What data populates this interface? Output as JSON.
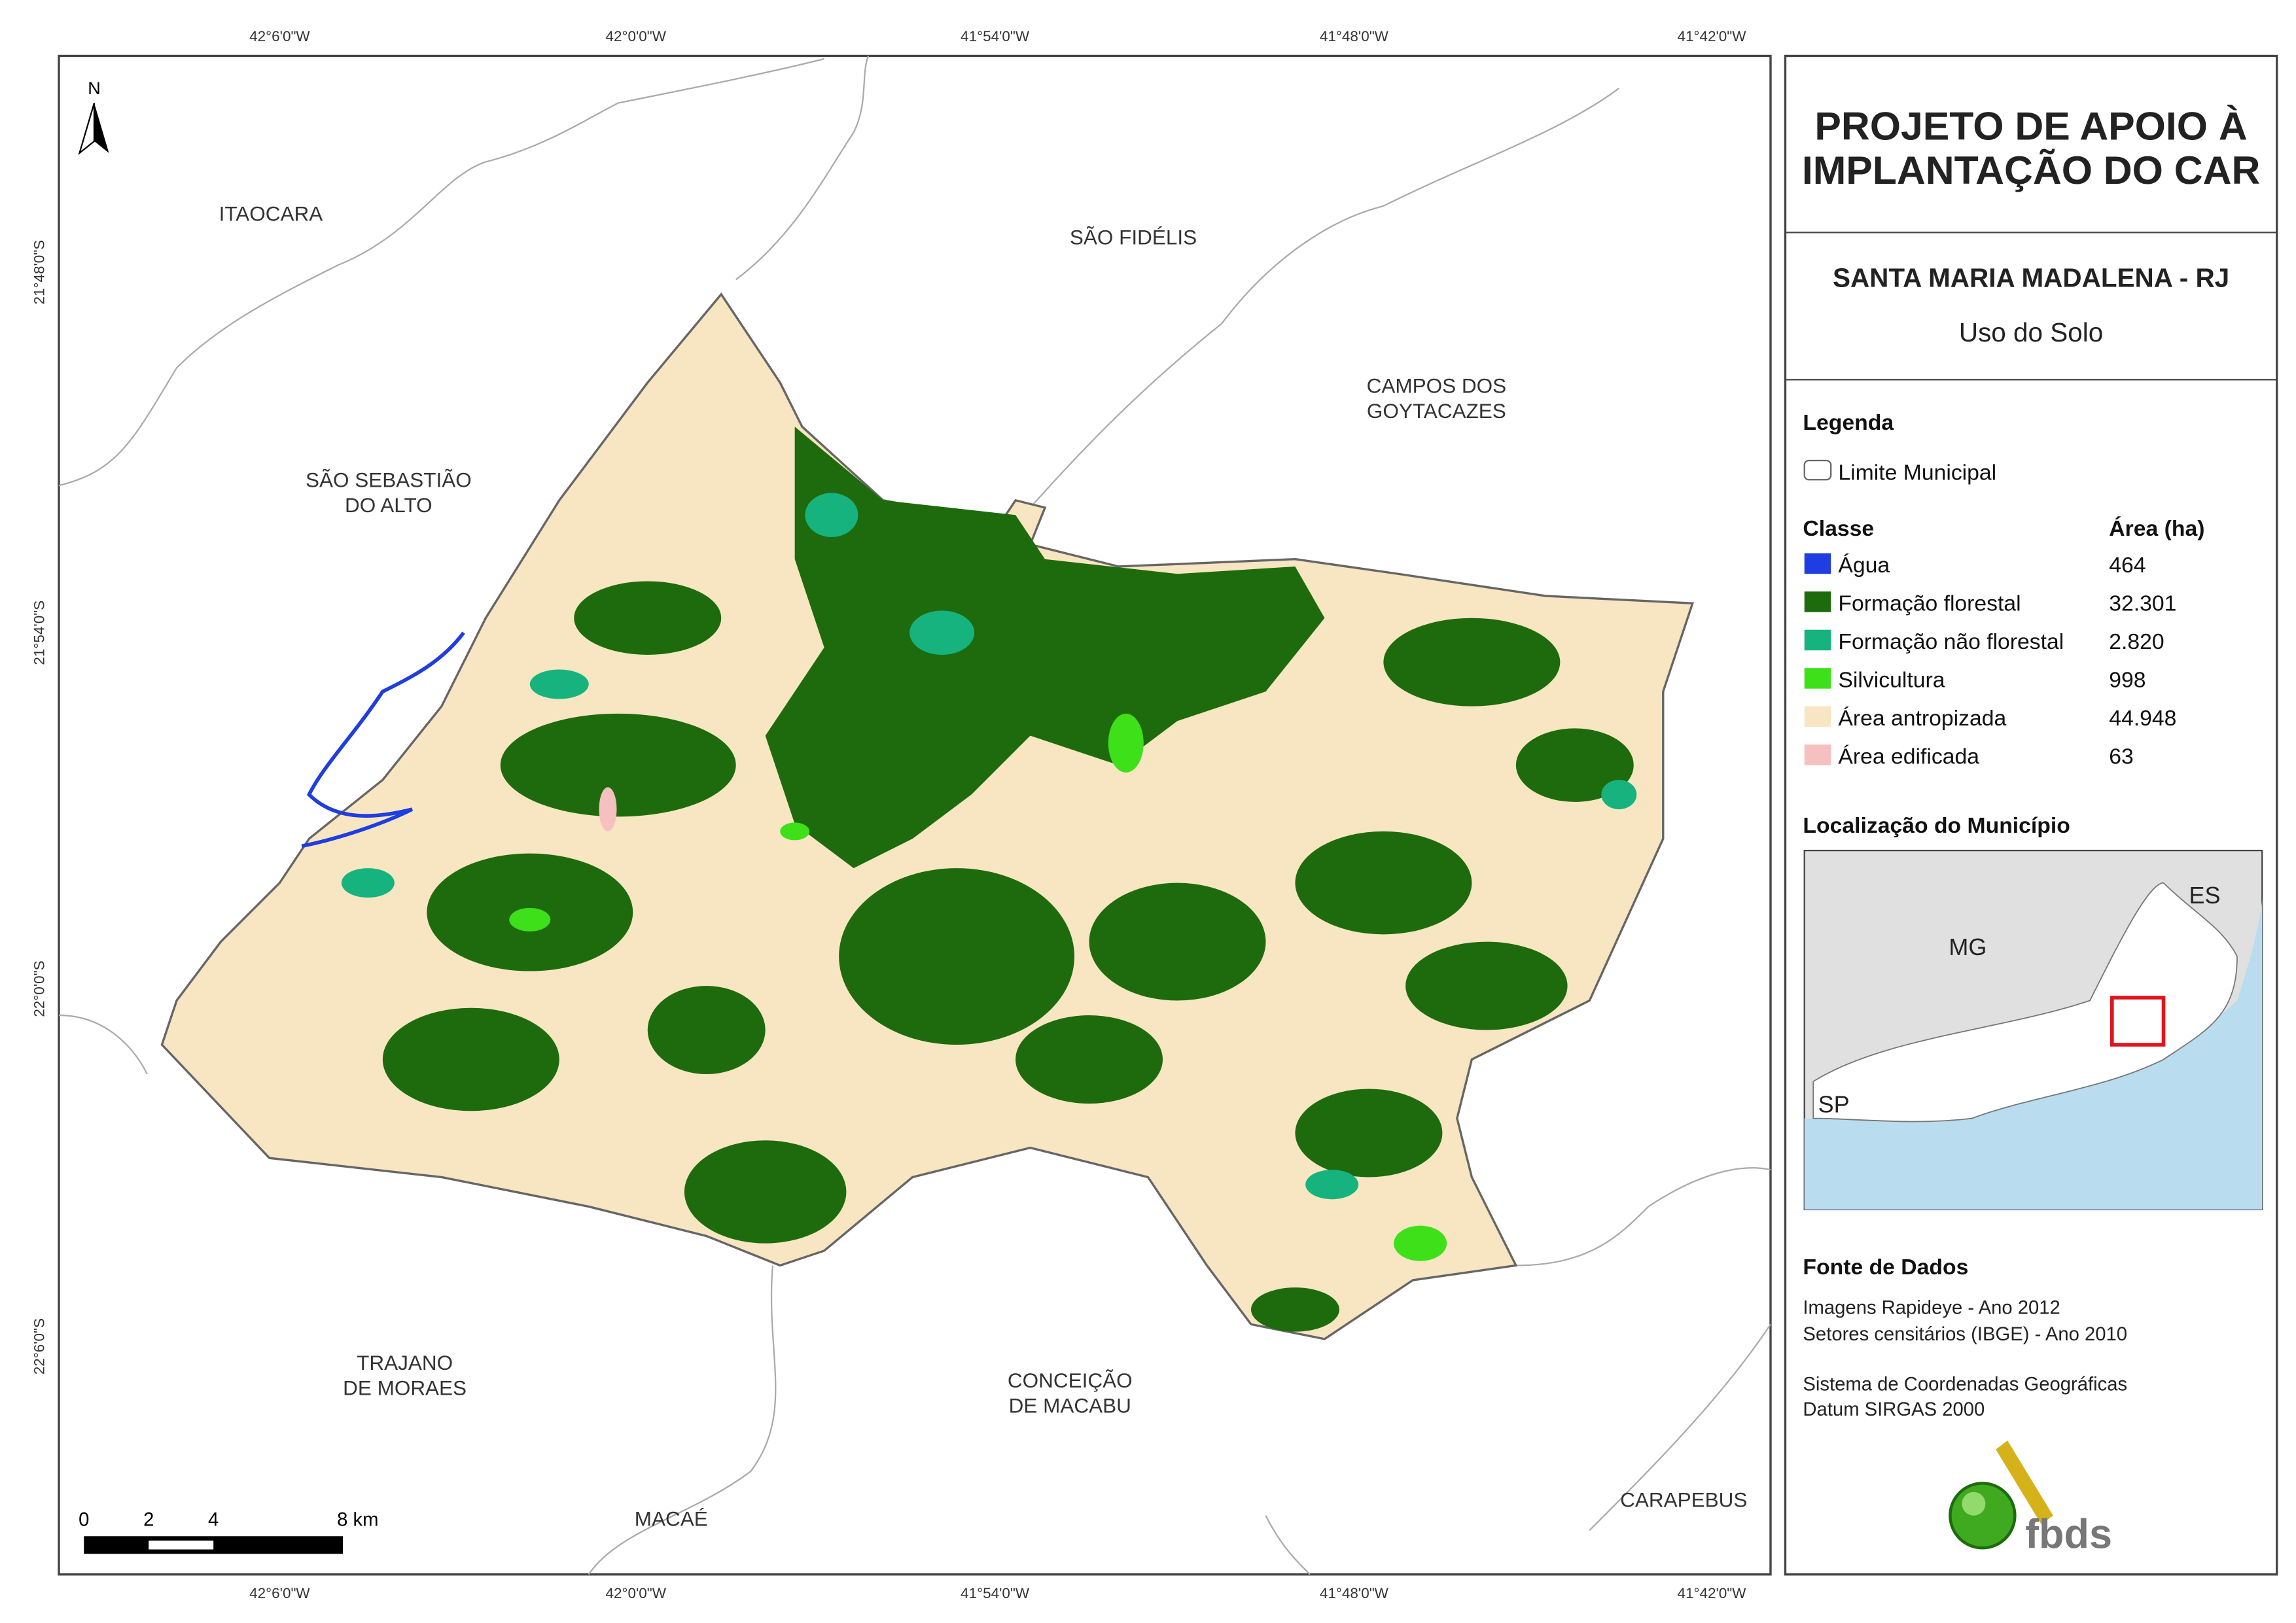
{
  "header": {
    "title_lines": [
      "PROJETO DE APOIO À",
      "IMPLANTAÇÃO DO CAR"
    ],
    "municipality": "SANTA MARIA MADALENA - RJ",
    "subtitle": "Uso do Solo"
  },
  "legend": {
    "title": "Legenda",
    "boundary": "Limite Municipal",
    "class_header": "Classe",
    "area_header": "Área (ha)",
    "classes": [
      {
        "name": "Água",
        "area": "464",
        "color": "#1f3de0"
      },
      {
        "name": "Formação florestal",
        "area": "32.301",
        "color": "#1e6b0d"
      },
      {
        "name": "Formação não florestal",
        "area": "2.820",
        "color": "#16b37e"
      },
      {
        "name": "Silvicultura",
        "area": "998",
        "color": "#3ee01a"
      },
      {
        "name": "Área antropizada",
        "area": "44.948",
        "color": "#f7e6c1"
      },
      {
        "name": "Área edificada",
        "area": "63",
        "color": "#f6c0c0"
      }
    ]
  },
  "location": {
    "title": "Localização do Município",
    "labels": [
      "MG",
      "ES",
      "SP"
    ]
  },
  "sources": {
    "title": "Fonte de Dados",
    "lines": [
      "Imagens Rapideye - Ano 2012",
      "Setores censitários (IBGE) - Ano 2010",
      "Sistema de Coordenadas Geográficas",
      "Datum SIRGAS 2000"
    ],
    "logo": "fbds"
  },
  "coordinates": {
    "longitudes": [
      "42°6'0\"W",
      "42°0'0\"W",
      "41°54'0\"W",
      "41°48'0\"W",
      "41°42'0\"W"
    ],
    "latitudes": [
      "21°48'0\"S",
      "21°54'0\"S",
      "22°0'0\"S",
      "22°6'0\"S"
    ]
  },
  "places": [
    {
      "lines": [
        "ITAOCARA"
      ]
    },
    {
      "lines": [
        "SÃO FIDÉLIS"
      ]
    },
    {
      "lines": [
        "CAMPOS DOS",
        "GOYTACAZES"
      ]
    },
    {
      "lines": [
        "SÃO SEBASTIÃO",
        "DO ALTO"
      ]
    },
    {
      "lines": [
        "TRAJANO",
        "DE MORAES"
      ]
    },
    {
      "lines": [
        "CONCEIÇÃO",
        "DE MACABU"
      ]
    },
    {
      "lines": [
        "MACAÉ"
      ]
    },
    {
      "lines": [
        "CARAPEBUS"
      ]
    }
  ],
  "north": "N",
  "scale_bar": [
    "0",
    "2",
    "4",
    "8 km"
  ]
}
